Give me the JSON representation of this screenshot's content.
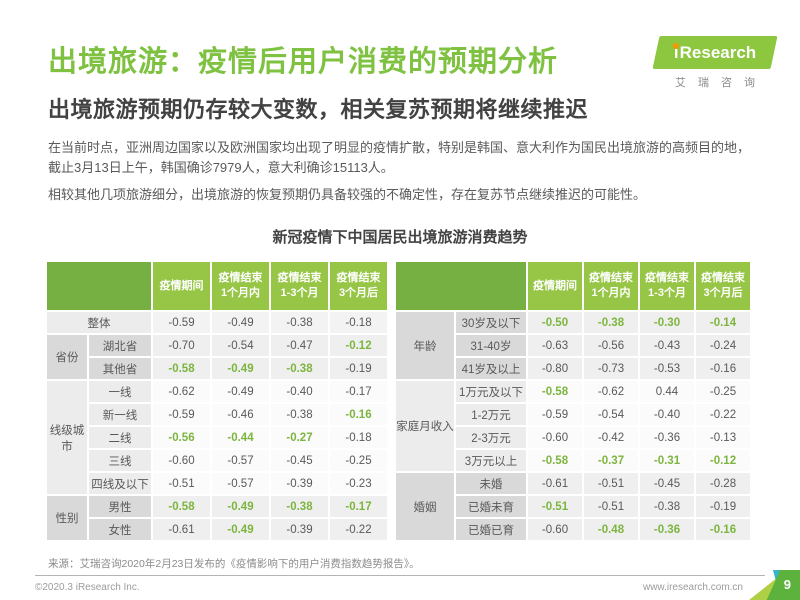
{
  "header": {
    "title": "出境旅游：疫情后用户消费的预期分析",
    "subtitle": "出境旅游预期仍存较大变数，相关复苏预期将继续推迟"
  },
  "logo": {
    "brand_i": "i",
    "brand_rest": "Research",
    "brand_cn": "艾瑞咨询"
  },
  "content": {
    "paragraphs": [
      "在当前时点，亚洲周边国家以及欧洲国家均出现了明显的疫情扩散，特别是韩国、意大利作为国民出境旅游的高频目的地，截止3月13日上午，韩国确诊7979人，意大利确诊15113人。",
      "相较其他几项旅游细分，出境旅游的恢复预期仍具备较强的不确定性，存在复苏节点继续推迟的可能性。"
    ],
    "table_title": "新冠疫情下中国居民出境旅游消费趋势"
  },
  "chart_data": [
    {
      "type": "table",
      "title": "新冠疫情下中国居民出境旅游消费趋势（左）",
      "columns": [
        "疫情期间",
        "疫情结束\n1个月内",
        "疫情结束\n1-3个月",
        "疫情结束\n3个月后"
      ],
      "groups": [
        {
          "label": "",
          "shade": "mid",
          "rows": [
            {
              "label": "整体",
              "values": [
                "-0.59",
                "-0.49",
                "-0.38",
                "-0.18"
              ],
              "highlight": [
                0,
                0,
                0,
                0
              ]
            }
          ]
        },
        {
          "label": "省份",
          "shade": "dark",
          "rows": [
            {
              "label": "湖北省",
              "values": [
                "-0.70",
                "-0.54",
                "-0.47",
                "-0.12"
              ],
              "highlight": [
                0,
                0,
                0,
                1
              ]
            },
            {
              "label": "其他省",
              "values": [
                "-0.58",
                "-0.49",
                "-0.38",
                "-0.19"
              ],
              "highlight": [
                1,
                1,
                1,
                0
              ]
            }
          ]
        },
        {
          "label": "线级城市",
          "shade": "light",
          "rows": [
            {
              "label": "一线",
              "values": [
                "-0.62",
                "-0.49",
                "-0.40",
                "-0.17"
              ],
              "highlight": [
                0,
                0,
                0,
                0
              ]
            },
            {
              "label": "新一线",
              "values": [
                "-0.59",
                "-0.46",
                "-0.38",
                "-0.16"
              ],
              "highlight": [
                0,
                0,
                0,
                1
              ]
            },
            {
              "label": "二线",
              "values": [
                "-0.56",
                "-0.44",
                "-0.27",
                "-0.18"
              ],
              "highlight": [
                1,
                1,
                1,
                0
              ]
            },
            {
              "label": "三线",
              "values": [
                "-0.60",
                "-0.57",
                "-0.45",
                "-0.25"
              ],
              "highlight": [
                0,
                0,
                0,
                0
              ]
            },
            {
              "label": "四线及以下",
              "values": [
                "-0.51",
                "-0.57",
                "-0.39",
                "-0.23"
              ],
              "highlight": [
                0,
                0,
                0,
                0
              ]
            }
          ]
        },
        {
          "label": "性别",
          "shade": "dark",
          "rows": [
            {
              "label": "男性",
              "values": [
                "-0.58",
                "-0.49",
                "-0.38",
                "-0.17"
              ],
              "highlight": [
                1,
                1,
                1,
                1
              ]
            },
            {
              "label": "女性",
              "values": [
                "-0.61",
                "-0.49",
                "-0.39",
                "-0.22"
              ],
              "highlight": [
                0,
                1,
                0,
                0
              ]
            }
          ]
        }
      ]
    },
    {
      "type": "table",
      "title": "新冠疫情下中国居民出境旅游消费趋势（右）",
      "columns": [
        "疫情期间",
        "疫情结束\n1个月内",
        "疫情结束\n1-3个月",
        "疫情结束\n3个月后"
      ],
      "groups": [
        {
          "label": "年龄",
          "shade": "dark",
          "rows": [
            {
              "label": "30岁及以下",
              "values": [
                "-0.50",
                "-0.38",
                "-0.30",
                "-0.14"
              ],
              "highlight": [
                1,
                1,
                1,
                1
              ]
            },
            {
              "label": "31-40岁",
              "values": [
                "-0.63",
                "-0.56",
                "-0.43",
                "-0.24"
              ],
              "highlight": [
                0,
                0,
                0,
                0
              ]
            },
            {
              "label": "41岁及以上",
              "values": [
                "-0.80",
                "-0.73",
                "-0.53",
                "-0.16"
              ],
              "highlight": [
                0,
                0,
                0,
                0
              ]
            }
          ]
        },
        {
          "label": "家庭月收入",
          "shade": "light",
          "rows": [
            {
              "label": "1万元及以下",
              "values": [
                "-0.58",
                "-0.62",
                "0.44",
                "-0.25"
              ],
              "highlight": [
                1,
                0,
                0,
                0
              ]
            },
            {
              "label": "1-2万元",
              "values": [
                "-0.59",
                "-0.54",
                "-0.40",
                "-0.22"
              ],
              "highlight": [
                0,
                0,
                0,
                0
              ]
            },
            {
              "label": "2-3万元",
              "values": [
                "-0.60",
                "-0.42",
                "-0.36",
                "-0.13"
              ],
              "highlight": [
                0,
                0,
                0,
                0
              ]
            },
            {
              "label": "3万元以上",
              "values": [
                "-0.58",
                "-0.37",
                "-0.31",
                "-0.12"
              ],
              "highlight": [
                1,
                1,
                1,
                1
              ]
            }
          ]
        },
        {
          "label": "婚姻",
          "shade": "dark",
          "rows": [
            {
              "label": "未婚",
              "values": [
                "-0.61",
                "-0.51",
                "-0.45",
                "-0.28"
              ],
              "highlight": [
                0,
                0,
                0,
                0
              ]
            },
            {
              "label": "已婚未育",
              "values": [
                "-0.51",
                "-0.51",
                "-0.38",
                "-0.19"
              ],
              "highlight": [
                1,
                0,
                0,
                0
              ]
            },
            {
              "label": "已婚已育",
              "values": [
                "-0.60",
                "-0.48",
                "-0.36",
                "-0.16"
              ],
              "highlight": [
                0,
                1,
                1,
                1
              ]
            }
          ]
        }
      ]
    }
  ],
  "footer": {
    "source": "来源：艾瑞咨询2020年2月23日发布的《疫情影响下的用户消费指数趋势报告》。",
    "copyright": "©2020.3 iResearch Inc.",
    "url": "www.iresearch.com.cn",
    "page_number": "9"
  },
  "colors": {
    "accent_green": "#7FC241",
    "header_label_green": "#76B043",
    "header_col_green": "#97C546",
    "highlight_green": "#7CB53E",
    "logo_green": "#8DC63F",
    "logo_dot_orange": "#F39800",
    "badge_green": "#5CB23C",
    "badge_light_green": "#AFCF45",
    "badge_teal": "#38B4C8",
    "text_dark": "#424242",
    "text_gray": "#595959",
    "text_light": "#9C9C9C",
    "band_dark_label": "#D9D9D9",
    "band_dark_cell": "#EFEFEF",
    "band_light_label": "#ECECEC",
    "band_light_cell": "#FBFBFB",
    "band_mid_cell": "#F3F3F3"
  }
}
